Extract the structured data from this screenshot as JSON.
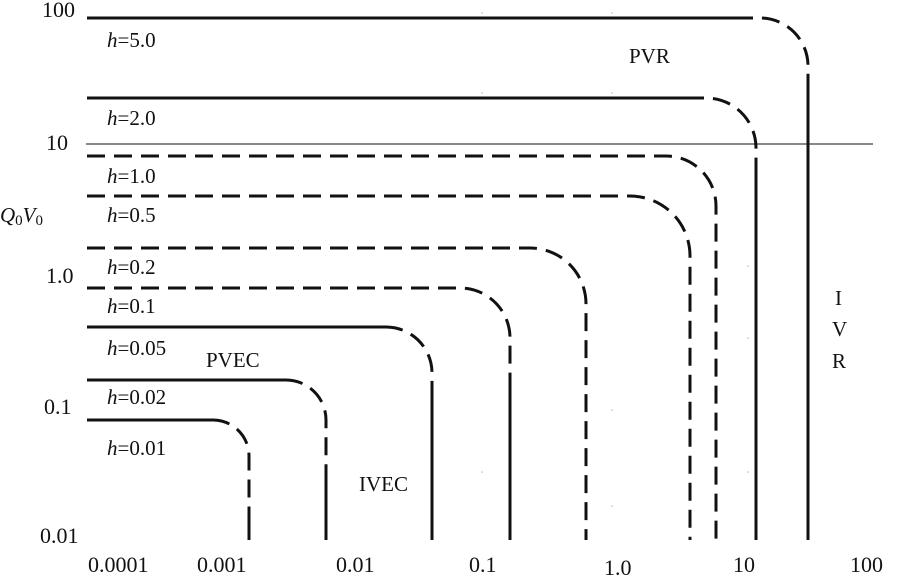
{
  "y_axis": {
    "label_Q": "Q",
    "label_Q_sub": "0",
    "label_V": "V",
    "label_V_sub": "0",
    "ticks": [
      "100",
      "10",
      "1.0",
      "0.1",
      "0.01"
    ]
  },
  "x_axis": {
    "ticks": [
      "0.0001",
      "0.001",
      "0.01",
      "0.1",
      "1.0",
      "10",
      "100"
    ]
  },
  "curves": [
    {
      "h_symbol": "h",
      "h_value": "=5.0"
    },
    {
      "h_symbol": "h",
      "h_value": "=2.0"
    },
    {
      "h_symbol": "h",
      "h_value": "=1.0"
    },
    {
      "h_symbol": "h",
      "h_value": "=0.5"
    },
    {
      "h_symbol": "h",
      "h_value": "=0.2"
    },
    {
      "h_symbol": "h",
      "h_value": "=0.1"
    },
    {
      "h_symbol": "h",
      "h_value": "=0.05"
    },
    {
      "h_symbol": "h",
      "h_value": "=0.02"
    },
    {
      "h_symbol": "h",
      "h_value": "=0.01"
    }
  ],
  "regions": {
    "pvr": "PVR",
    "pvec": "PVEC",
    "ivec": "IVEC",
    "ivr_letters": [
      "I",
      "V",
      "R"
    ]
  },
  "colors": {
    "ink": "#111111",
    "background": "#ffffff"
  }
}
